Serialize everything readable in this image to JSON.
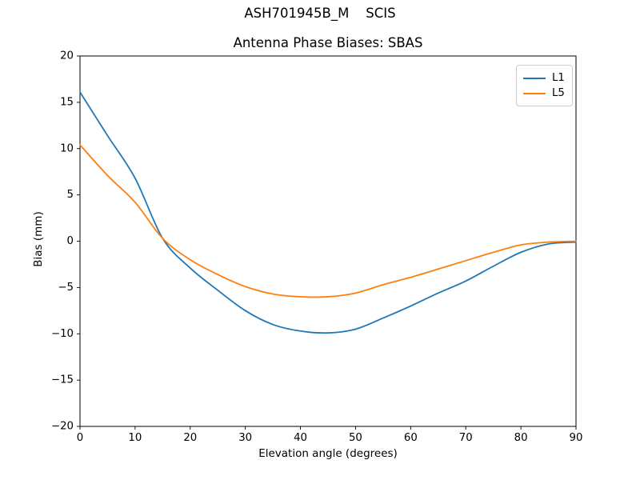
{
  "figure": {
    "suptitle": "ASH701945B_M    SCIS",
    "background": "#ffffff"
  },
  "chart_data": {
    "type": "line",
    "title": "Antenna Phase Biases: SBAS",
    "xlabel": "Elevation angle (degrees)",
    "ylabel": "Bias (mm)",
    "xlim": [
      0,
      90
    ],
    "ylim": [
      -20,
      20
    ],
    "xticks": [
      0,
      10,
      20,
      30,
      40,
      50,
      60,
      70,
      80,
      90
    ],
    "yticks": [
      -20,
      -15,
      -10,
      -5,
      0,
      5,
      10,
      15,
      20
    ],
    "grid": false,
    "legend_position": "upper right",
    "axis_color": "#000000",
    "x": [
      0,
      5,
      10,
      15,
      20,
      25,
      30,
      35,
      40,
      45,
      50,
      55,
      60,
      65,
      70,
      75,
      80,
      85,
      90
    ],
    "series": [
      {
        "name": "L1",
        "color": "#1f77b4",
        "values": [
          16.1,
          11.4,
          6.8,
          0.3,
          -2.9,
          -5.3,
          -7.5,
          -9.0,
          -9.7,
          -9.9,
          -9.5,
          -8.3,
          -7.0,
          -5.6,
          -4.3,
          -2.7,
          -1.2,
          -0.3,
          -0.1
        ]
      },
      {
        "name": "L5",
        "color": "#ff7f0e",
        "values": [
          10.4,
          7.1,
          4.2,
          0.3,
          -2.0,
          -3.6,
          -4.9,
          -5.7,
          -6.0,
          -6.0,
          -5.6,
          -4.7,
          -3.9,
          -3.0,
          -2.1,
          -1.2,
          -0.4,
          -0.1,
          0.0
        ]
      }
    ]
  }
}
